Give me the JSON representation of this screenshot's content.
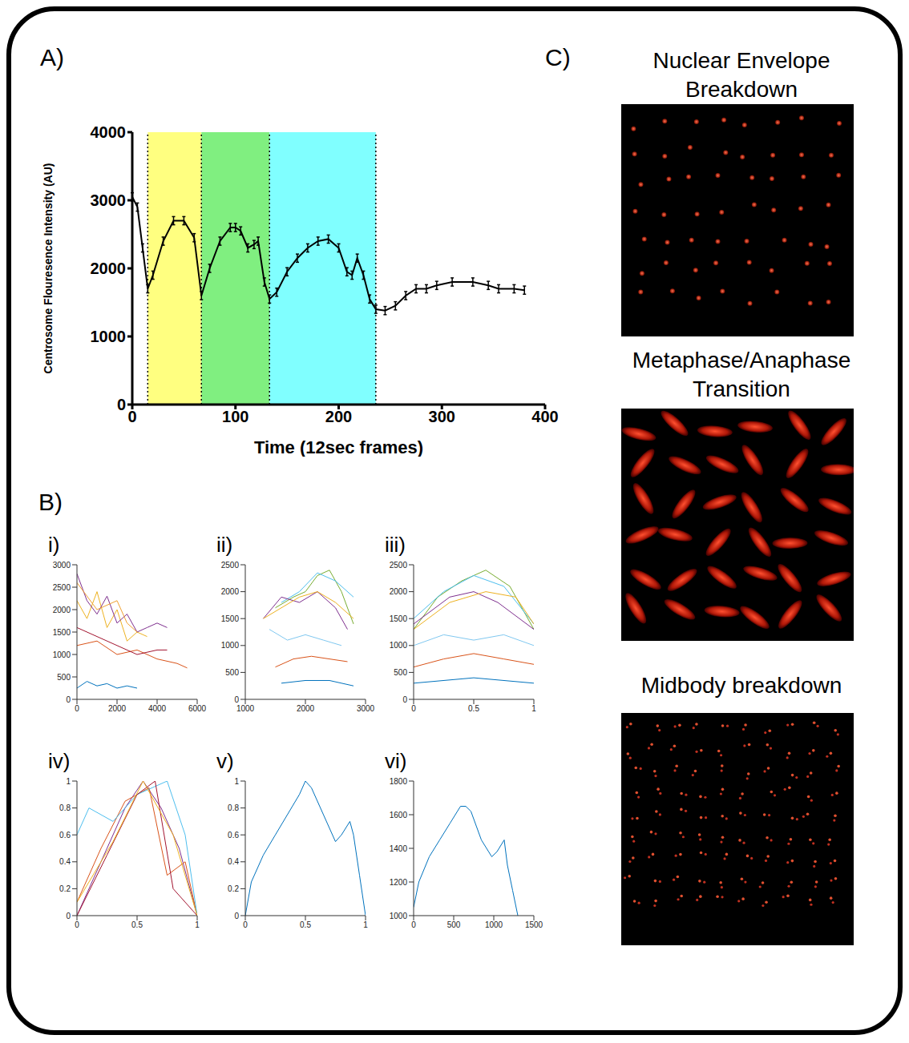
{
  "chart_data": [
    {
      "type": "line",
      "title": "A)",
      "xlabel": "Time (12sec frames)",
      "ylabel": "Centrosome Flouresence Intensity (AU)",
      "xlim": [
        0,
        400
      ],
      "ylim": [
        0,
        4000
      ],
      "xticks": [
        0,
        100,
        200,
        300,
        400
      ],
      "yticks": [
        0,
        1000,
        2000,
        3000,
        4000
      ],
      "color": "#000000",
      "x": [
        0,
        5,
        10,
        15,
        20,
        30,
        40,
        50,
        60,
        67,
        75,
        85,
        95,
        100,
        105,
        112,
        118,
        122,
        128,
        133,
        140,
        150,
        160,
        170,
        180,
        190,
        200,
        208,
        213,
        218,
        224,
        230,
        236,
        245,
        255,
        265,
        275,
        285,
        295,
        310,
        330,
        345,
        355,
        370,
        380
      ],
      "values": [
        3050,
        2900,
        2300,
        1700,
        1900,
        2400,
        2700,
        2700,
        2450,
        1600,
        2000,
        2400,
        2600,
        2600,
        2550,
        2300,
        2350,
        2400,
        1800,
        1550,
        1650,
        1950,
        2150,
        2300,
        2400,
        2430,
        2300,
        1950,
        1900,
        2150,
        1900,
        1550,
        1400,
        1380,
        1450,
        1600,
        1700,
        1700,
        1750,
        1800,
        1800,
        1750,
        1700,
        1700,
        1680
      ],
      "errors": [
        60,
        60,
        60,
        60,
        60,
        60,
        60,
        60,
        60,
        60,
        60,
        60,
        60,
        60,
        60,
        60,
        60,
        60,
        60,
        60,
        60,
        60,
        60,
        60,
        60,
        60,
        60,
        60,
        60,
        60,
        60,
        60,
        60,
        60,
        60,
        60,
        60,
        60,
        60,
        60,
        60,
        60,
        60,
        60,
        60
      ],
      "shaded_regions": [
        {
          "x": [
            15,
            67
          ],
          "color": "#ffff80"
        },
        {
          "x": [
            67,
            133
          ],
          "color": "#80ef80"
        },
        {
          "x": [
            133,
            236
          ],
          "color": "#80ffff"
        }
      ]
    },
    {
      "type": "line",
      "title": "i)",
      "xlim": [
        0,
        6000
      ],
      "ylim": [
        0,
        3000
      ],
      "xticks": [
        0,
        2000,
        4000,
        6000
      ],
      "yticks": [
        0,
        500,
        1000,
        1500,
        2000,
        2500,
        3000
      ],
      "series": [
        {
          "color": "#0072bd",
          "x": [
            0,
            500,
            1000,
            1500,
            2000,
            2500,
            3000
          ],
          "values": [
            250,
            400,
            300,
            350,
            250,
            300,
            250
          ]
        },
        {
          "color": "#d95319",
          "x": [
            0,
            1000,
            2000,
            3000,
            4000,
            5000,
            5500
          ],
          "values": [
            1200,
            1300,
            1000,
            1100,
            900,
            800,
            700
          ]
        },
        {
          "color": "#edb120",
          "x": [
            0,
            500,
            1000,
            1500,
            2000,
            2500,
            3000,
            3500
          ],
          "values": [
            2200,
            1800,
            2400,
            1600,
            2000,
            1300,
            1500,
            1400
          ]
        },
        {
          "color": "#7e2f8e",
          "x": [
            0,
            500,
            1000,
            1500,
            2000,
            2500,
            3000,
            3500,
            4000,
            4500
          ],
          "values": [
            2800,
            2200,
            1900,
            2300,
            1700,
            1900,
            1500,
            1600,
            1700,
            1600
          ]
        },
        {
          "color": "#f0a030",
          "x": [
            0,
            1000,
            2000,
            2500,
            3000
          ],
          "values": [
            2600,
            2000,
            2200,
            1700,
            1500
          ]
        },
        {
          "color": "#a2142f",
          "x": [
            0,
            1000,
            2000,
            3000,
            4000,
            4500
          ],
          "values": [
            1600,
            1400,
            1200,
            1000,
            1100,
            1100
          ]
        }
      ]
    },
    {
      "type": "line",
      "title": "ii)",
      "xlim": [
        1000,
        3000
      ],
      "ylim": [
        0,
        2500
      ],
      "xticks": [
        1000,
        2000,
        3000
      ],
      "yticks": [
        0,
        500,
        1000,
        1500,
        2000,
        2500
      ],
      "series": [
        {
          "color": "#77ac30",
          "x": [
            1500,
            1800,
            2000,
            2200,
            2400,
            2600,
            2800
          ],
          "values": [
            1700,
            1900,
            2000,
            2300,
            2400,
            2000,
            1400
          ]
        },
        {
          "color": "#4dbeee",
          "x": [
            1600,
            1900,
            2200,
            2500,
            2800
          ],
          "values": [
            1800,
            2000,
            2350,
            2200,
            1900
          ]
        },
        {
          "color": "#7e2f8e",
          "x": [
            1300,
            1600,
            1900,
            2200,
            2500,
            2700
          ],
          "values": [
            1500,
            1900,
            1800,
            2000,
            1700,
            1300
          ]
        },
        {
          "color": "#80c8f0",
          "x": [
            1400,
            1700,
            2000,
            2300,
            2600
          ],
          "values": [
            1300,
            1100,
            1200,
            1100,
            1000
          ]
        },
        {
          "color": "#d95319",
          "x": [
            1500,
            1800,
            2100,
            2400,
            2700
          ],
          "values": [
            600,
            750,
            800,
            750,
            700
          ]
        },
        {
          "color": "#0072bd",
          "x": [
            1600,
            2000,
            2400,
            2800
          ],
          "values": [
            300,
            350,
            350,
            250
          ]
        },
        {
          "color": "#edb120",
          "x": [
            1300,
            1600,
            1900,
            2200,
            2500,
            2800
          ],
          "values": [
            1500,
            1700,
            1900,
            2000,
            1800,
            1500
          ]
        }
      ]
    },
    {
      "type": "line",
      "title": "iii)",
      "xlim": [
        0,
        1
      ],
      "ylim": [
        0,
        2500
      ],
      "xticks": [
        0,
        0.5,
        1
      ],
      "yticks": [
        0,
        500,
        1000,
        1500,
        2000,
        2500
      ],
      "series": [
        {
          "color": "#77ac30",
          "x": [
            0,
            0.2,
            0.4,
            0.6,
            0.8,
            1
          ],
          "values": [
            1300,
            1900,
            2200,
            2400,
            2100,
            1300
          ]
        },
        {
          "color": "#4dbeee",
          "x": [
            0,
            0.25,
            0.5,
            0.75,
            1
          ],
          "values": [
            1500,
            2000,
            2300,
            2100,
            1400
          ]
        },
        {
          "color": "#7e2f8e",
          "x": [
            0,
            0.3,
            0.5,
            0.7,
            1
          ],
          "values": [
            1400,
            1900,
            2000,
            1800,
            1300
          ]
        },
        {
          "color": "#80c8f0",
          "x": [
            0,
            0.25,
            0.5,
            0.75,
            1
          ],
          "values": [
            1000,
            1200,
            1100,
            1200,
            1000
          ]
        },
        {
          "color": "#d95319",
          "x": [
            0,
            0.25,
            0.5,
            0.75,
            1
          ],
          "values": [
            600,
            750,
            850,
            750,
            650
          ]
        },
        {
          "color": "#0072bd",
          "x": [
            0,
            0.5,
            1
          ],
          "values": [
            300,
            400,
            300
          ]
        },
        {
          "color": "#edb120",
          "x": [
            0,
            0.3,
            0.6,
            0.85,
            1
          ],
          "values": [
            1300,
            1800,
            2000,
            1900,
            1400
          ]
        }
      ]
    },
    {
      "type": "line",
      "title": "iv)",
      "xlim": [
        0,
        1
      ],
      "ylim": [
        0,
        1
      ],
      "xticks": [
        0,
        0.5,
        1
      ],
      "yticks": [
        0,
        0.2,
        0.4,
        0.6,
        0.8,
        1
      ],
      "series": [
        {
          "color": "#7e2f8e",
          "x": [
            0,
            0.2,
            0.4,
            0.55,
            0.7,
            0.85,
            1
          ],
          "values": [
            0,
            0.4,
            0.8,
            1,
            0.8,
            0.5,
            0
          ]
        },
        {
          "color": "#d95319",
          "x": [
            0,
            0.2,
            0.4,
            0.6,
            0.75,
            0.9,
            1
          ],
          "values": [
            0.1,
            0.5,
            0.85,
            0.95,
            0.3,
            0.4,
            0
          ]
        },
        {
          "color": "#4dbeee",
          "x": [
            0,
            0.1,
            0.3,
            0.5,
            0.75,
            0.9,
            1
          ],
          "values": [
            0.6,
            0.8,
            0.7,
            0.9,
            1,
            0.6,
            0
          ]
        },
        {
          "color": "#a2142f",
          "x": [
            0,
            0.25,
            0.5,
            0.65,
            0.8,
            1
          ],
          "values": [
            0,
            0.45,
            0.9,
            1,
            0.2,
            0
          ]
        },
        {
          "color": "#edb120",
          "x": [
            0,
            0.3,
            0.55,
            0.8,
            1
          ],
          "values": [
            0.1,
            0.55,
            1,
            0.6,
            0
          ]
        }
      ]
    },
    {
      "type": "line",
      "title": "v)",
      "xlim": [
        0,
        1
      ],
      "ylim": [
        0,
        1
      ],
      "xticks": [
        0,
        0.5,
        1
      ],
      "yticks": [
        0,
        0.2,
        0.4,
        0.6,
        0.8,
        1
      ],
      "series": [
        {
          "color": "#0072bd",
          "x": [
            0,
            0.05,
            0.15,
            0.25,
            0.35,
            0.45,
            0.5,
            0.55,
            0.65,
            0.75,
            0.8,
            0.87,
            0.9,
            0.95,
            1
          ],
          "values": [
            0,
            0.25,
            0.45,
            0.6,
            0.75,
            0.9,
            1,
            0.95,
            0.75,
            0.55,
            0.6,
            0.7,
            0.6,
            0.3,
            0
          ]
        }
      ]
    },
    {
      "type": "line",
      "title": "vi)",
      "xlim": [
        0,
        1500
      ],
      "ylim": [
        1000,
        1800
      ],
      "xticks": [
        0,
        500,
        1000,
        1500
      ],
      "yticks": [
        1000,
        1200,
        1400,
        1600,
        1800
      ],
      "series": [
        {
          "color": "#0072bd",
          "x": [
            0,
            65,
            195,
            325,
            455,
            585,
            650,
            715,
            845,
            975,
            1040,
            1130,
            1170,
            1235,
            1300
          ],
          "values": [
            1050,
            1200,
            1350,
            1450,
            1550,
            1650,
            1650,
            1620,
            1450,
            1350,
            1380,
            1450,
            1300,
            1150,
            1000
          ]
        }
      ]
    }
  ],
  "figure": {
    "B_label": "B)",
    "C_label": "C)",
    "images": [
      "Nuclear Envelope Breakdown",
      "Metaphase/Anaphase Transition",
      "Midbody breakdown"
    ]
  }
}
